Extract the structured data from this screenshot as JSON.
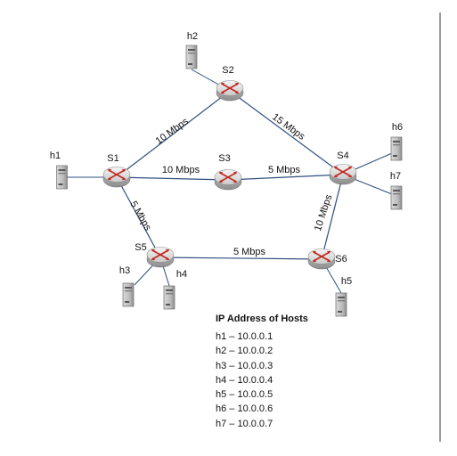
{
  "diagram": {
    "switches": [
      {
        "id": "s1",
        "label": "S1"
      },
      {
        "id": "s2",
        "label": "S2"
      },
      {
        "id": "s3",
        "label": "S3"
      },
      {
        "id": "s4",
        "label": "S4"
      },
      {
        "id": "s5",
        "label": "S5"
      },
      {
        "id": "s6",
        "label": "S6"
      }
    ],
    "hosts": [
      {
        "id": "h1",
        "label": "h1",
        "switch": "s1"
      },
      {
        "id": "h2",
        "label": "h2",
        "switch": "s2"
      },
      {
        "id": "h3",
        "label": "h3",
        "switch": "s5"
      },
      {
        "id": "h4",
        "label": "h4",
        "switch": "s5"
      },
      {
        "id": "h5",
        "label": "h5",
        "switch": "s6"
      },
      {
        "id": "h6",
        "label": "h6",
        "switch": "s4"
      },
      {
        "id": "h7",
        "label": "h7",
        "switch": "s4"
      }
    ],
    "links": [
      {
        "id": "s1-s2",
        "from": "s1",
        "to": "s2",
        "bandwidth": "10 Mbps"
      },
      {
        "id": "s2-s4",
        "from": "s2",
        "to": "s4",
        "bandwidth": "15 Mbps"
      },
      {
        "id": "s1-s3",
        "from": "s1",
        "to": "s3",
        "bandwidth": "10 Mbps"
      },
      {
        "id": "s3-s4",
        "from": "s3",
        "to": "s4",
        "bandwidth": "5 Mbps"
      },
      {
        "id": "s1-s5",
        "from": "s1",
        "to": "s5",
        "bandwidth": "5 Mbps"
      },
      {
        "id": "s5-s6",
        "from": "s5",
        "to": "s6",
        "bandwidth": "5 Mbps"
      },
      {
        "id": "s4-s6",
        "from": "s4",
        "to": "s6",
        "bandwidth": "10 Mbps"
      }
    ]
  },
  "ip_table": {
    "title": "IP Address of Hosts",
    "rows": [
      "h1 – 10.0.0.1",
      "h2 – 10.0.0.2",
      "h3 – 10.0.0.3",
      "h4 – 10.0.0.4",
      "h5 – 10.0.0.5",
      "h6 – 10.0.0.6",
      "h7 – 10.0.0.7"
    ]
  },
  "colors": {
    "router_body": "#d6d6d6",
    "router_arrows": "#c0281e",
    "link": "#2f4f7f",
    "frame_line": "#9a9a9a"
  }
}
